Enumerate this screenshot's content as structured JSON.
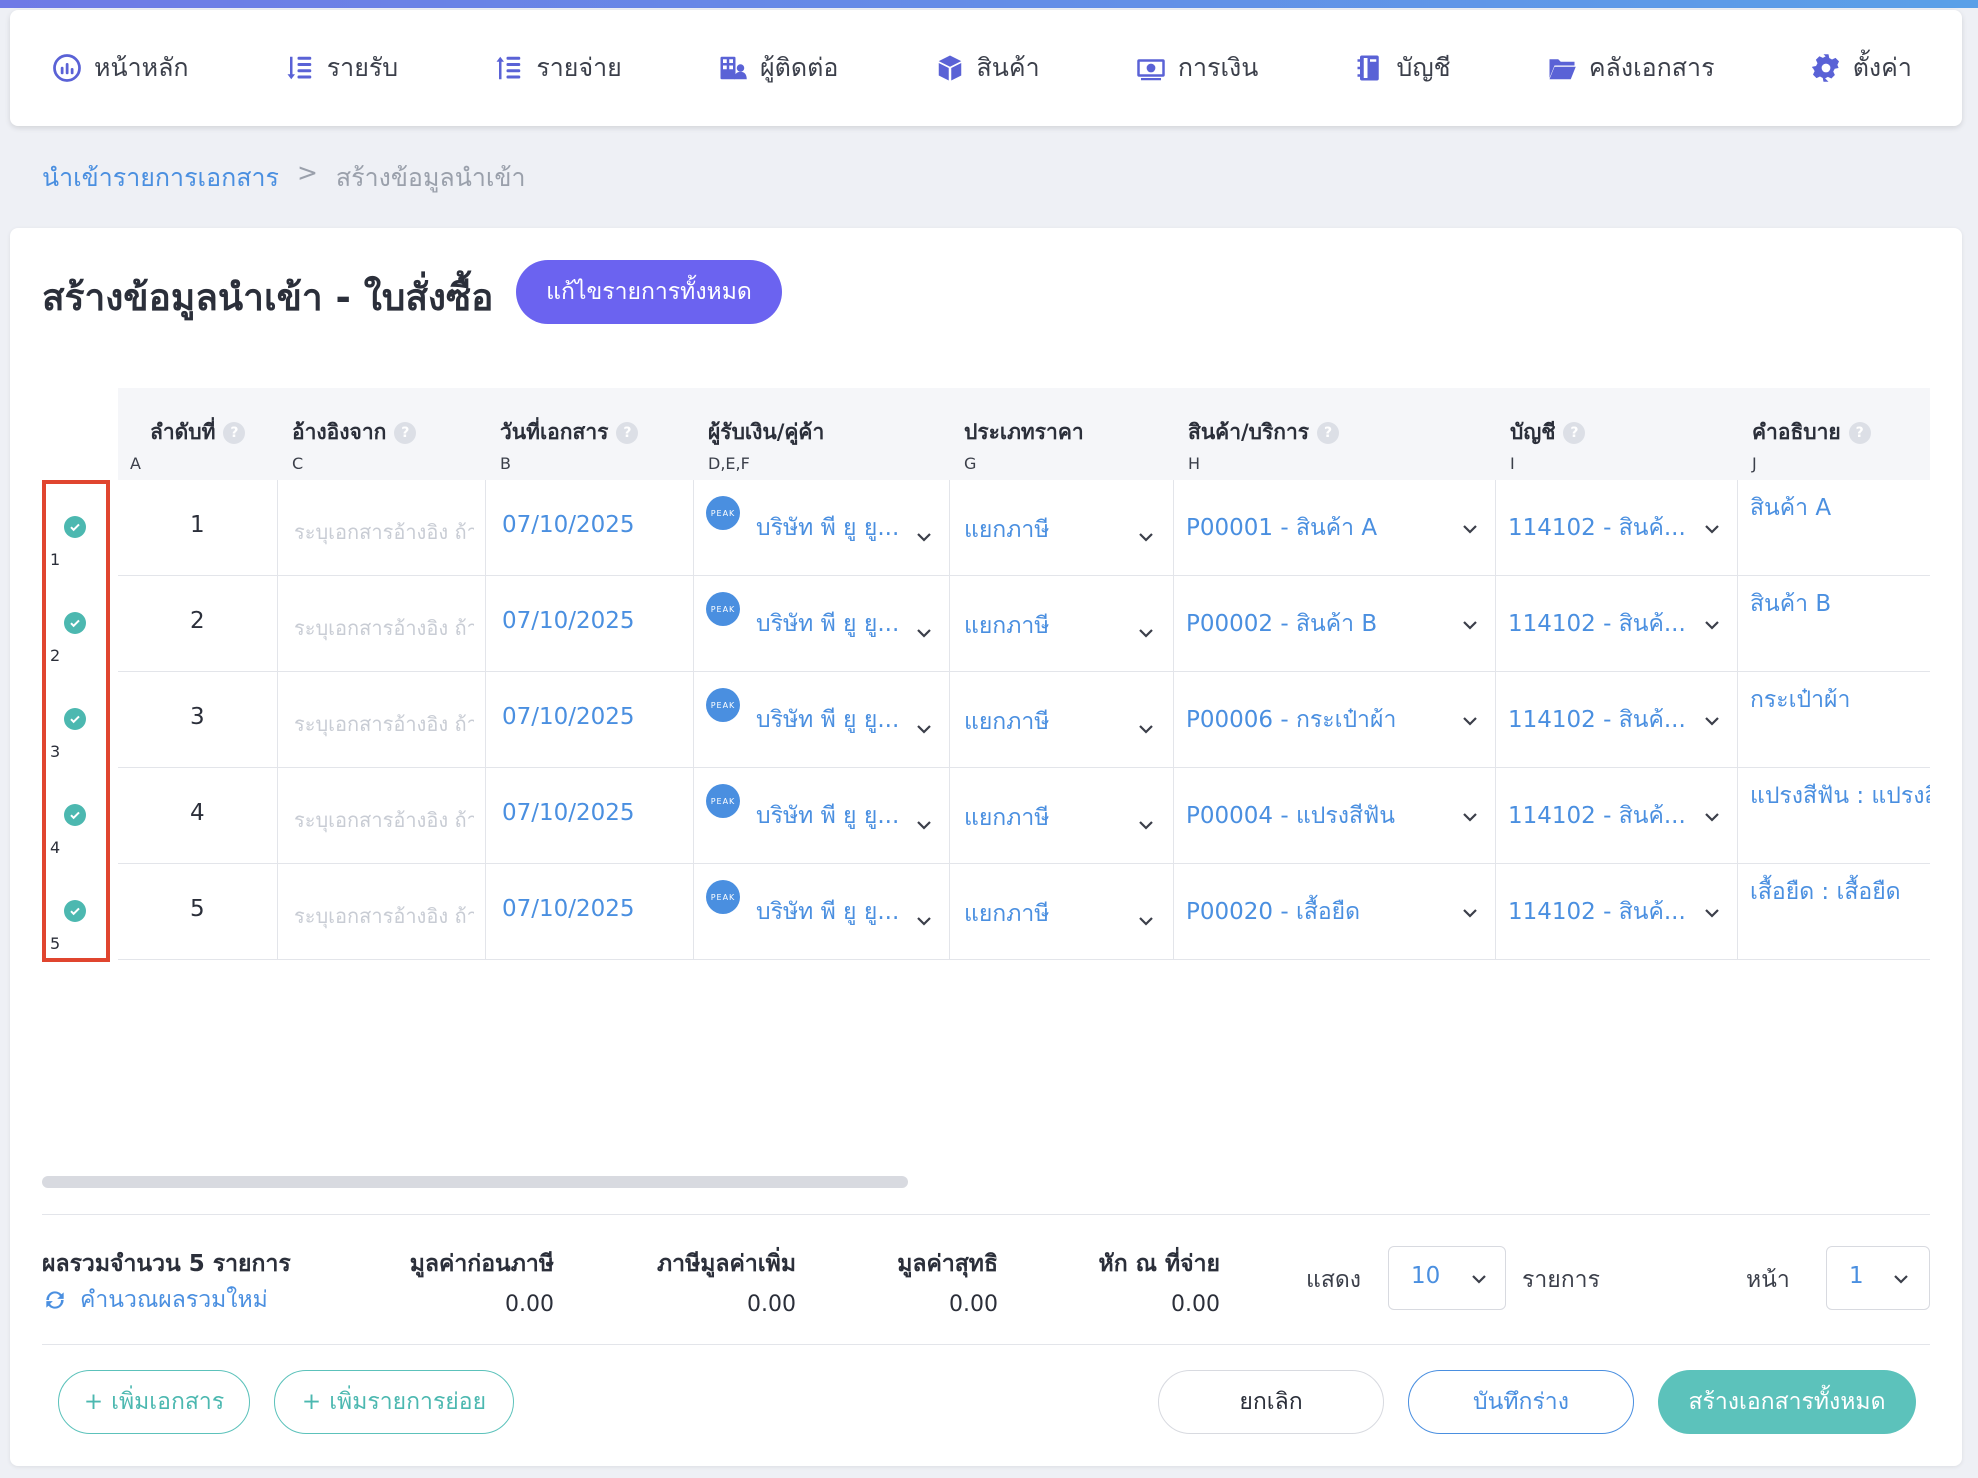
{
  "nav": {
    "items": [
      {
        "label": "หน้าหลัก",
        "icon": "dashboard-icon"
      },
      {
        "label": "รายรับ",
        "icon": "income-icon"
      },
      {
        "label": "รายจ่าย",
        "icon": "expense-icon"
      },
      {
        "label": "ผู้ติดต่อ",
        "icon": "contacts-icon"
      },
      {
        "label": "สินค้า",
        "icon": "product-box-icon"
      },
      {
        "label": "การเงิน",
        "icon": "money-icon"
      },
      {
        "label": "บัญชี",
        "icon": "ledger-book-icon"
      },
      {
        "label": "คลังเอกสาร",
        "icon": "folder-icon"
      },
      {
        "label": "ตั้งค่า",
        "icon": "gear-icon"
      }
    ]
  },
  "breadcrumb": {
    "parent": "นำเข้ารายการเอกสาร",
    "separator": ">",
    "current": "สร้างข้อมูลนำเข้า"
  },
  "page": {
    "title": "สร้างข้อมูลนำเข้า - ใบสั่งซื้อ",
    "edit_all_label": "แก้ไขรายการทั้งหมด"
  },
  "table": {
    "columns": [
      {
        "label": "ลำดับที่",
        "sub": "A",
        "help": true
      },
      {
        "label": "อ้างอิงจาก",
        "sub": "C",
        "help": true
      },
      {
        "label": "วันที่เอกสาร",
        "sub": "B",
        "help": true
      },
      {
        "label": "ผู้รับเงิน/คู่ค้า",
        "sub": "D,E,F",
        "help": false
      },
      {
        "label": "ประเภทราคา",
        "sub": "G",
        "help": false
      },
      {
        "label": "สินค้า/บริการ",
        "sub": "H",
        "help": true
      },
      {
        "label": "บัญชี",
        "sub": "I",
        "help": true
      },
      {
        "label": "คำอธิบาย",
        "sub": "J",
        "help": true
      }
    ],
    "help_glyph": "?",
    "peak_badge": "PEAK",
    "rows": [
      {
        "sel": "1",
        "no": "1",
        "ref": "ระบุเอกสารอ้างอิง ถ้ามี",
        "date": "07/10/2025",
        "vendor": "บริษัท พี ยู ยู...",
        "price_type": "แยกภาษี",
        "product": "P00001 - สินค้า A",
        "account": "114102 - สินค้...",
        "desc": "สินค้า A"
      },
      {
        "sel": "2",
        "no": "2",
        "ref": "ระบุเอกสารอ้างอิง ถ้ามี",
        "date": "07/10/2025",
        "vendor": "บริษัท พี ยู ยู...",
        "price_type": "แยกภาษี",
        "product": "P00002 - สินค้า B",
        "account": "114102 - สินค้...",
        "desc": "สินค้า B"
      },
      {
        "sel": "3",
        "no": "3",
        "ref": "ระบุเอกสารอ้างอิง ถ้ามี",
        "date": "07/10/2025",
        "vendor": "บริษัท พี ยู ยู...",
        "price_type": "แยกภาษี",
        "product": "P00006 - กระเป๋าผ้า",
        "account": "114102 - สินค้...",
        "desc": "กระเป๋าผ้า"
      },
      {
        "sel": "4",
        "no": "4",
        "ref": "ระบุเอกสารอ้างอิง ถ้ามี",
        "date": "07/10/2025",
        "vendor": "บริษัท พี ยู ยู...",
        "price_type": "แยกภาษี",
        "product": "P00004 - แปรงสีฟัน",
        "account": "114102 - สินค้...",
        "desc": "แปรงสีฟัน : แปรงสีฟัน"
      },
      {
        "sel": "5",
        "no": "5",
        "ref": "ระบุเอกสารอ้างอิง ถ้ามี",
        "date": "07/10/2025",
        "vendor": "บริษัท พี ยู ยู...",
        "price_type": "แยกภาษี",
        "product": "P00020 - เสื้อยืด",
        "account": "114102 - สินค้...",
        "desc": "เสื้อยืด : เสื้อยืด"
      }
    ]
  },
  "summary": {
    "title": "ผลรวมจำนวน 5 รายการ",
    "recalc_label": "คำนวณผลรวมใหม่",
    "cols": [
      {
        "label": "มูลค่าก่อนภาษี",
        "value": "0.00"
      },
      {
        "label": "ภาษีมูลค่าเพิ่ม",
        "value": "0.00"
      },
      {
        "label": "มูลค่าสุทธิ",
        "value": "0.00"
      },
      {
        "label": "หัก ณ ที่จ่าย",
        "value": "0.00"
      }
    ],
    "show_label": "แสดง",
    "page_size": "10",
    "items_label": "รายการ",
    "page_label": "หน้า",
    "page_num": "1"
  },
  "buttons": {
    "add_doc": "เพิ่มเอกสาร",
    "add_item": "เพิ่มรายการย่อย",
    "cancel": "ยกเลิก",
    "save_draft": "บันทึกร่าง",
    "create_all": "สร้างเอกสารทั้งหมด",
    "plus": "+"
  },
  "colors": {
    "accent": "#6b63f0",
    "link": "#4a8fe0",
    "teal": "#5cc2bb",
    "highlight": "#e0452f"
  }
}
